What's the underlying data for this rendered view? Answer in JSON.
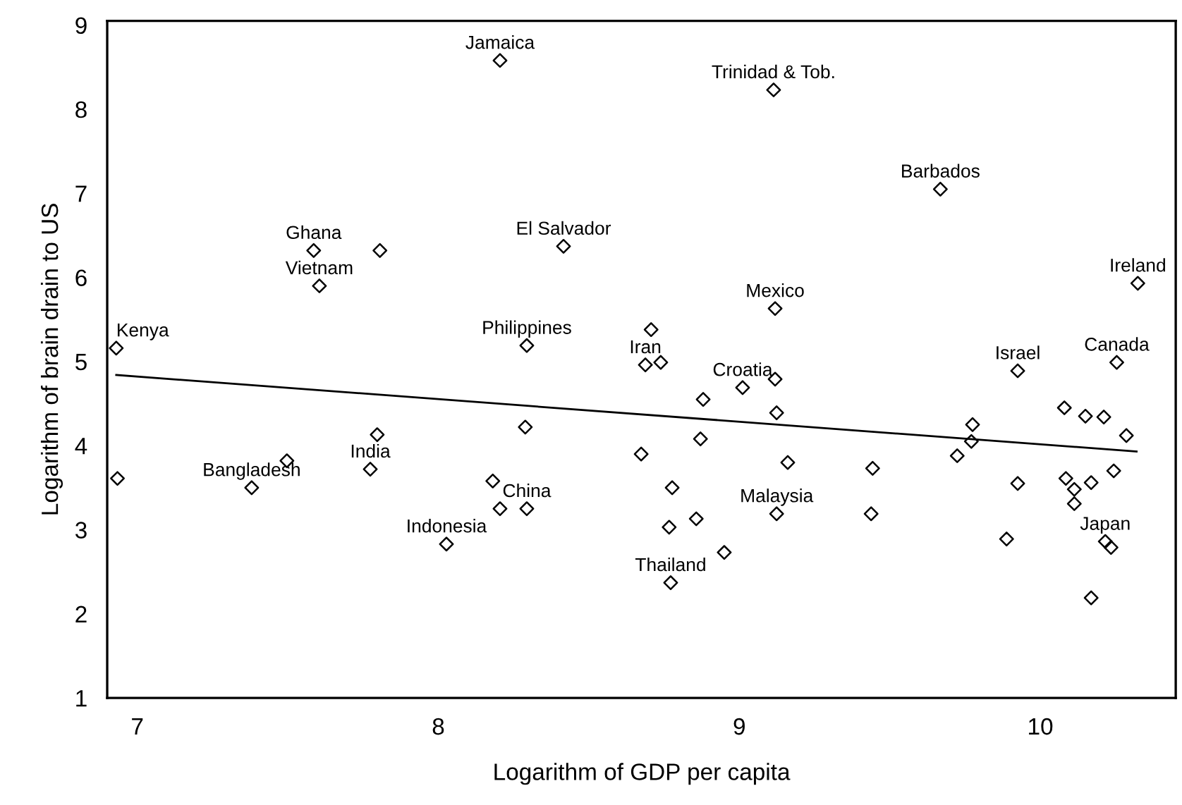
{
  "chart_data": {
    "type": "scatter",
    "xlabel": "Logarithm of GDP per capita",
    "ylabel": "Logarithm of brain drain to US",
    "xlim": [
      6.9,
      10.45
    ],
    "ylim": [
      1,
      9.05
    ],
    "xticks": [
      7,
      8,
      9,
      10
    ],
    "yticks": [
      1,
      2,
      3,
      4,
      5,
      6,
      7,
      8,
      9
    ],
    "grid": false,
    "legend": false,
    "series": [
      {
        "color": "#000000",
        "marker": "diamond",
        "x": [
          8.205,
          7.586,
          7.806,
          8.416,
          7.605,
          6.93,
          8.294,
          9.114,
          9.668,
          10.324,
          9.119,
          8.707,
          8.688,
          8.739,
          9.925,
          10.254,
          9.011,
          9.119,
          8.88,
          9.124,
          8.871,
          8.674,
          9.161,
          9.443,
          8.777,
          9.124,
          9.438,
          8.857,
          8.767,
          8.95,
          8.772,
          9.775,
          9.771,
          9.724,
          9.925,
          9.888,
          10.08,
          10.15,
          10.211,
          10.286,
          10.085,
          10.169,
          10.113,
          10.113,
          10.244,
          10.216,
          10.235,
          10.169,
          6.934,
          7.38,
          7.497,
          7.774,
          7.797,
          8.289,
          8.181,
          8.205,
          8.294,
          8.027
        ],
        "values": [
          8.58,
          6.32,
          6.32,
          6.37,
          5.9,
          5.16,
          5.19,
          8.23,
          7.05,
          5.93,
          5.63,
          5.38,
          4.96,
          4.99,
          4.89,
          4.99,
          4.69,
          4.79,
          4.55,
          4.39,
          4.08,
          3.9,
          3.8,
          3.73,
          3.5,
          3.19,
          3.19,
          3.13,
          3.03,
          2.73,
          2.37,
          4.25,
          4.05,
          3.88,
          3.55,
          2.89,
          4.45,
          4.35,
          4.34,
          4.12,
          3.61,
          3.56,
          3.48,
          3.31,
          3.7,
          2.86,
          2.79,
          2.19,
          3.61,
          3.5,
          3.82,
          3.72,
          4.13,
          4.22,
          3.58,
          3.25,
          3.25,
          2.83
        ]
      },
      {
        "type": "line",
        "color": "#000000",
        "marker": "none",
        "line_style": "solid",
        "x": [
          6.93,
          10.32
        ],
        "values": [
          4.84,
          3.93
        ]
      }
    ],
    "annotations": [
      {
        "text": "Jamaica",
        "x": 8.205,
        "y": 8.58
      },
      {
        "text": "Trinidad & Tob.",
        "x": 9.114,
        "y": 8.23
      },
      {
        "text": "Barbados",
        "x": 9.668,
        "y": 7.05
      },
      {
        "text": "Ghana",
        "x": 7.586,
        "y": 6.32
      },
      {
        "text": "El Salvador",
        "x": 8.416,
        "y": 6.37
      },
      {
        "text": "Vietnam",
        "x": 7.605,
        "y": 5.9
      },
      {
        "text": "Ireland",
        "x": 10.324,
        "y": 5.93
      },
      {
        "text": "Mexico",
        "x": 9.119,
        "y": 5.63
      },
      {
        "text": "Kenya",
        "x": 6.93,
        "y": 5.16
      },
      {
        "text": "Philippines",
        "x": 8.294,
        "y": 5.19
      },
      {
        "text": "Iran",
        "x": 8.688,
        "y": 4.96
      },
      {
        "text": "Croatia",
        "x": 9.011,
        "y": 4.69
      },
      {
        "text": "Israel",
        "x": 9.925,
        "y": 4.89
      },
      {
        "text": "Canada",
        "x": 10.254,
        "y": 4.99
      },
      {
        "text": "Bangladesh",
        "x": 7.38,
        "y": 3.5
      },
      {
        "text": "India",
        "x": 7.774,
        "y": 3.72
      },
      {
        "text": "China",
        "x": 8.294,
        "y": 3.25
      },
      {
        "text": "Indonesia",
        "x": 8.027,
        "y": 2.83
      },
      {
        "text": "Malaysia",
        "x": 9.124,
        "y": 3.19
      },
      {
        "text": "Thailand",
        "x": 8.772,
        "y": 2.37
      },
      {
        "text": "Japan",
        "x": 10.216,
        "y": 2.86
      }
    ]
  }
}
